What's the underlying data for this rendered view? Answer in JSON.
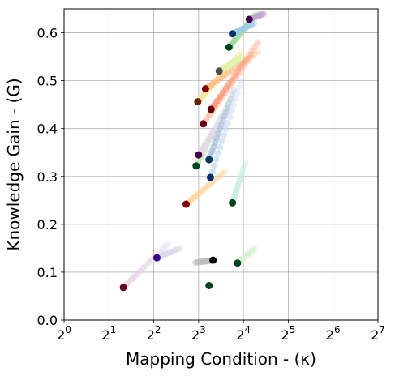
{
  "chart_data": {
    "type": "scatter",
    "title": "",
    "xlabel": "Mapping Condition - (κ)",
    "ylabel": "Knowledge Gain - (G)",
    "x_scale": "log2",
    "x_ticks": [
      {
        "base": "2",
        "exp": "0",
        "value": 1
      },
      {
        "base": "2",
        "exp": "1",
        "value": 2
      },
      {
        "base": "2",
        "exp": "2",
        "value": 4
      },
      {
        "base": "2",
        "exp": "3",
        "value": 8
      },
      {
        "base": "2",
        "exp": "4",
        "value": 16
      },
      {
        "base": "2",
        "exp": "5",
        "value": 32
      },
      {
        "base": "2",
        "exp": "6",
        "value": 64
      },
      {
        "base": "2",
        "exp": "7",
        "value": 128
      }
    ],
    "y_ticks": [
      "0.0",
      "0.1",
      "0.2",
      "0.3",
      "0.4",
      "0.5",
      "0.6"
    ],
    "xlim": [
      1,
      128
    ],
    "ylim": [
      0,
      0.65
    ],
    "grid": true,
    "series": [
      {
        "color": "#67001f",
        "trail": "#e7d4e8",
        "start": [
          2.5,
          0.068
        ],
        "end": [
          5.0,
          0.16
        ]
      },
      {
        "color": "#000000",
        "trail": "#bdbdbd",
        "start": [
          10.0,
          0.125
        ],
        "end": [
          7.6,
          0.12
        ]
      },
      {
        "color": "#00441b",
        "trail": "#d9f0d3",
        "start": [
          14.6,
          0.119
        ],
        "end": [
          19.0,
          0.15
        ]
      },
      {
        "color": "#00441b",
        "trail": "#d9f0d3",
        "start": [
          9.4,
          0.072
        ],
        "end": [
          9.4,
          0.072
        ]
      },
      {
        "color": "#7f0000",
        "trail": "#fdd49e",
        "start": [
          6.6,
          0.242
        ],
        "end": [
          12.0,
          0.31
        ]
      },
      {
        "color": "#00441b",
        "trail": "#ccece6",
        "start": [
          13.5,
          0.245
        ],
        "end": [
          16.5,
          0.33
        ]
      },
      {
        "color": "#00441b",
        "trail": "#c7e9c0",
        "start": [
          7.7,
          0.322
        ],
        "end": [
          13.0,
          0.46
        ]
      },
      {
        "color": "#40004b",
        "trail": "#e7d4e8",
        "start": [
          8.0,
          0.345
        ],
        "end": [
          12.5,
          0.44
        ]
      },
      {
        "color": "#023858",
        "trail": "#a6bddb",
        "start": [
          9.4,
          0.335
        ],
        "end": [
          13.8,
          0.48
        ]
      },
      {
        "color": "#08306b",
        "trail": "#c6dbef",
        "start": [
          9.6,
          0.298
        ],
        "end": [
          15.5,
          0.5
        ]
      },
      {
        "color": "#662506",
        "trail": "#fee391",
        "start": [
          7.9,
          0.456
        ],
        "end": [
          15.5,
          0.56
        ]
      },
      {
        "color": "#67000d",
        "trail": "#fcbba1",
        "start": [
          8.6,
          0.41
        ],
        "end": [
          18.0,
          0.55
        ]
      },
      {
        "color": "#7f0000",
        "trail": "#fdbb84",
        "start": [
          8.9,
          0.483
        ],
        "end": [
          20.0,
          0.56
        ]
      },
      {
        "color": "#67000d",
        "trail": "#fc9272",
        "start": [
          9.7,
          0.44
        ],
        "end": [
          20.0,
          0.58
        ]
      },
      {
        "color": "#00441b",
        "trail": "#a1d99b",
        "start": [
          12.8,
          0.57
        ],
        "end": [
          19.5,
          0.64
        ]
      },
      {
        "color": "#40004b",
        "trail": "#c2a5cf",
        "start": [
          17.5,
          0.628
        ],
        "end": [
          22.0,
          0.64
        ]
      },
      {
        "color": "#08306b",
        "trail": "#9ecae1",
        "start": [
          13.5,
          0.598
        ],
        "end": [
          19.0,
          0.62
        ]
      },
      {
        "color": "#4d4d4d",
        "trail": "#e0f3a8",
        "start": [
          11.0,
          0.52
        ],
        "end": [
          15.5,
          0.55
        ]
      },
      {
        "color": "#3f007d",
        "trail": "#dadaeb",
        "start": [
          4.2,
          0.13
        ],
        "end": [
          6.0,
          0.15
        ]
      }
    ]
  }
}
